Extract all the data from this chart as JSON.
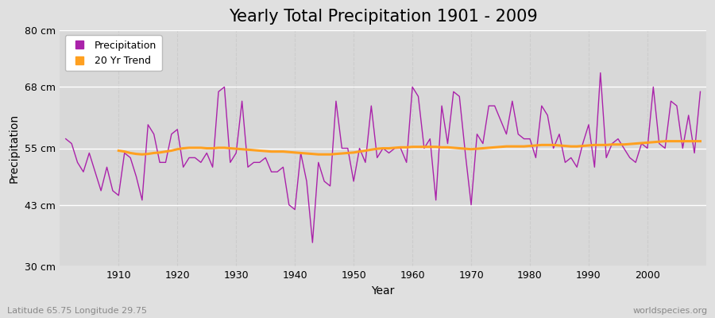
{
  "title": "Yearly Total Precipitation 1901 - 2009",
  "xlabel": "Year",
  "ylabel": "Precipitation",
  "subtitle": "Latitude 65.75 Longitude 29.75",
  "watermark": "worldspecies.org",
  "years": [
    1901,
    1902,
    1903,
    1904,
    1905,
    1906,
    1907,
    1908,
    1909,
    1910,
    1911,
    1912,
    1913,
    1914,
    1915,
    1916,
    1917,
    1918,
    1919,
    1920,
    1921,
    1922,
    1923,
    1924,
    1925,
    1926,
    1927,
    1928,
    1929,
    1930,
    1931,
    1932,
    1933,
    1934,
    1935,
    1936,
    1937,
    1938,
    1939,
    1940,
    1941,
    1942,
    1943,
    1944,
    1945,
    1946,
    1947,
    1948,
    1949,
    1950,
    1951,
    1952,
    1953,
    1954,
    1955,
    1956,
    1957,
    1958,
    1959,
    1960,
    1961,
    1962,
    1963,
    1964,
    1965,
    1966,
    1967,
    1968,
    1969,
    1970,
    1971,
    1972,
    1973,
    1974,
    1975,
    1976,
    1977,
    1978,
    1979,
    1980,
    1981,
    1982,
    1983,
    1984,
    1985,
    1986,
    1987,
    1988,
    1989,
    1990,
    1991,
    1992,
    1993,
    1994,
    1995,
    1996,
    1997,
    1998,
    1999,
    2000,
    2001,
    2002,
    2003,
    2004,
    2005,
    2006,
    2007,
    2008,
    2009
  ],
  "precipitation": [
    57,
    56,
    52,
    50,
    54,
    50,
    46,
    51,
    46,
    45,
    54,
    53,
    49,
    44,
    60,
    58,
    52,
    52,
    58,
    59,
    51,
    53,
    53,
    52,
    54,
    51,
    67,
    68,
    52,
    54,
    65,
    51,
    52,
    52,
    53,
    50,
    50,
    51,
    43,
    42,
    54,
    48,
    35,
    52,
    48,
    47,
    65,
    55,
    55,
    48,
    55,
    52,
    64,
    53,
    55,
    54,
    55,
    55,
    52,
    68,
    66,
    55,
    57,
    44,
    64,
    56,
    67,
    66,
    54,
    43,
    58,
    56,
    64,
    64,
    61,
    58,
    65,
    58,
    57,
    57,
    53,
    64,
    62,
    55,
    58,
    52,
    53,
    51,
    56,
    60,
    51,
    71,
    53,
    56,
    57,
    55,
    53,
    52,
    56,
    55,
    68,
    56,
    55,
    65,
    64,
    55,
    62,
    54,
    67
  ],
  "trend_years": [
    1910,
    1911,
    1912,
    1913,
    1914,
    1915,
    1916,
    1917,
    1918,
    1919,
    1920,
    1921,
    1922,
    1923,
    1924,
    1925,
    1926,
    1927,
    1928,
    1929,
    1930,
    1931,
    1932,
    1933,
    1934,
    1935,
    1936,
    1937,
    1938,
    1939,
    1940,
    1941,
    1942,
    1943,
    1944,
    1945,
    1946,
    1947,
    1948,
    1949,
    1950,
    1951,
    1952,
    1953,
    1954,
    1955,
    1956,
    1957,
    1958,
    1959,
    1960,
    1961,
    1962,
    1963,
    1964,
    1965,
    1966,
    1967,
    1968,
    1969,
    1970,
    1971,
    1972,
    1973,
    1974,
    1975,
    1976,
    1977,
    1978,
    1979,
    1980,
    1981,
    1982,
    1983,
    1984,
    1985,
    1986,
    1987,
    1988,
    1989,
    1990,
    1991,
    1992,
    1993,
    1994,
    1995,
    1996,
    1997,
    1998,
    1999,
    2000,
    2001,
    2002,
    2003,
    2004,
    2005,
    2006,
    2007,
    2008,
    2009
  ],
  "trend": [
    54.5,
    54.3,
    54.0,
    53.8,
    53.7,
    53.8,
    54.0,
    54.1,
    54.3,
    54.5,
    54.8,
    55.0,
    55.1,
    55.1,
    55.1,
    55.0,
    55.0,
    55.1,
    55.1,
    55.0,
    54.9,
    54.8,
    54.7,
    54.6,
    54.5,
    54.4,
    54.3,
    54.3,
    54.3,
    54.2,
    54.1,
    54.0,
    53.9,
    53.8,
    53.7,
    53.7,
    53.7,
    53.8,
    53.9,
    54.0,
    54.1,
    54.3,
    54.5,
    54.7,
    54.9,
    55.0,
    55.0,
    55.1,
    55.2,
    55.2,
    55.3,
    55.3,
    55.3,
    55.3,
    55.3,
    55.2,
    55.2,
    55.1,
    55.0,
    54.9,
    54.8,
    54.9,
    55.0,
    55.1,
    55.2,
    55.3,
    55.4,
    55.4,
    55.4,
    55.4,
    55.5,
    55.6,
    55.7,
    55.7,
    55.7,
    55.6,
    55.5,
    55.4,
    55.4,
    55.5,
    55.6,
    55.7,
    55.7,
    55.7,
    55.8,
    55.8,
    55.8,
    55.9,
    56.0,
    56.1,
    56.2,
    56.3,
    56.4,
    56.5,
    56.5,
    56.5,
    56.5,
    56.5,
    56.5,
    56.5
  ],
  "ylim": [
    30,
    80
  ],
  "yticks": [
    30,
    43,
    55,
    68,
    80
  ],
  "ytick_labels": [
    "30 cm",
    "43 cm",
    "55 cm",
    "68 cm",
    "80 cm"
  ],
  "xlim_min": 1900,
  "xlim_max": 2010,
  "xticks": [
    1910,
    1920,
    1930,
    1940,
    1950,
    1960,
    1970,
    1980,
    1990,
    2000
  ],
  "precip_color": "#AA22AA",
  "trend_color": "#FFA020",
  "fig_bg_color": "#E0E0E0",
  "plot_bg_color": "#D8D8D8",
  "grid_h_color": "#FFFFFF",
  "grid_v_color": "#CCCCCC",
  "title_fontsize": 15,
  "axis_label_fontsize": 10,
  "tick_fontsize": 9,
  "legend_fontsize": 9,
  "subtitle_color": "#888888",
  "watermark_color": "#888888"
}
